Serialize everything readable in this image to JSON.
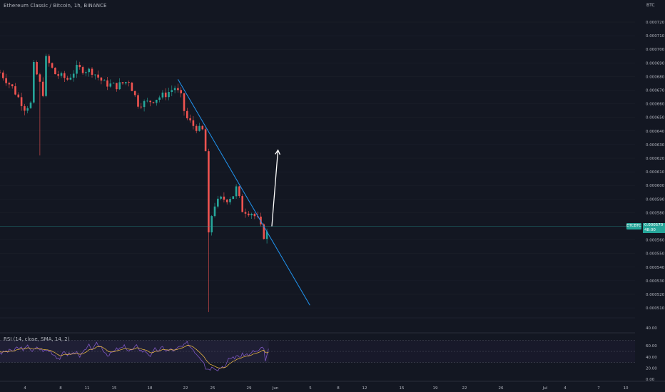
{
  "header": {
    "title": "Ethereum Classic / Bitcoin, 1h, BINANCE",
    "currency": "BTC"
  },
  "price_tag": {
    "symbol": "ETCBTC",
    "price": "0.000570",
    "countdown": "48:00"
  },
  "rsi_panel": {
    "title": "RSI (14, close, SMA, 14, 2)",
    "ticks": [
      "60.00",
      "40.00",
      "20.00",
      "0.00"
    ],
    "upper_band": 70,
    "lower_band": 30
  },
  "colors": {
    "background": "#131722",
    "up": "#26a69a",
    "down": "#ef5350",
    "trendline": "#2196f3",
    "arrow": "#ffffff",
    "rsi_line": "#7e57c2",
    "rsi_ma": "#f7c244"
  },
  "chart_data": {
    "type": "candlestick",
    "instrument": "ETCBTC",
    "timeframe": "1h",
    "exchange": "BINANCE",
    "x_ticks": [
      "4",
      "8",
      "11",
      "15",
      "18",
      "22",
      "25",
      "29",
      "Jun",
      "5",
      "8",
      "12",
      "15",
      "19",
      "22",
      "26",
      "Jul",
      "4",
      "7",
      "10"
    ],
    "y_ticks": [
      "0.000720",
      "0.000710",
      "0.000700",
      "0.000690",
      "0.000680",
      "0.000670",
      "0.000660",
      "0.000650",
      "0.000640",
      "0.000630",
      "0.000620",
      "0.000610",
      "0.000600",
      "0.000590",
      "0.000580",
      "0.000560",
      "0.000550",
      "0.000540",
      "0.000530",
      "0.000520",
      "0.000510"
    ],
    "extra_tick": "40.00",
    "ylim": [
      0.000505,
      0.000727
    ],
    "close_path": [
      {
        "d": 0,
        "p": 0.000683
      },
      {
        "d": 2,
        "p": 0.000672
      },
      {
        "d": 4,
        "p": 0.000657
      },
      {
        "d": 5,
        "p": 0.00066
      },
      {
        "d": 5.5,
        "p": 0.000688
      },
      {
        "d": 7,
        "p": 0.000668
      },
      {
        "d": 7.5,
        "p": 0.000693
      },
      {
        "d": 9,
        "p": 0.000682
      },
      {
        "d": 11,
        "p": 0.000678
      },
      {
        "d": 12.5,
        "p": 0.000686
      },
      {
        "d": 15,
        "p": 0.000684
      },
      {
        "d": 17,
        "p": 0.000675
      },
      {
        "d": 19,
        "p": 0.000673
      },
      {
        "d": 21,
        "p": 0.000677
      },
      {
        "d": 22.5,
        "p": 0.00066
      },
      {
        "d": 24,
        "p": 0.000661
      },
      {
        "d": 27,
        "p": 0.000667
      },
      {
        "d": 28.5,
        "p": 0.000672
      },
      {
        "d": 29.5,
        "p": 0.000665
      },
      {
        "d": 30,
        "p": 0.000655
      },
      {
        "d": 30.5,
        "p": 0.000649
      },
      {
        "d": 31.5,
        "p": 0.000644
      },
      {
        "d": 32.5,
        "p": 0.000641
      },
      {
        "d": 33.2,
        "p": 0.00064
      },
      {
        "d": 33.5,
        "p": 0.000625
      },
      {
        "d": 33.8,
        "p": 0.000555
      },
      {
        "d": 34.3,
        "p": 0.000575
      },
      {
        "d": 35,
        "p": 0.000586
      },
      {
        "d": 36,
        "p": 0.00059
      },
      {
        "d": 37,
        "p": 0.00059
      },
      {
        "d": 38,
        "p": 0.000593
      },
      {
        "d": 38.5,
        "p": 0.000598
      },
      {
        "d": 39.5,
        "p": 0.000582
      },
      {
        "d": 41,
        "p": 0.00058
      },
      {
        "d": 42,
        "p": 0.000575
      },
      {
        "d": 43,
        "p": 0.000563
      },
      {
        "d": 43.5,
        "p": 0.000565
      },
      {
        "d": 43.8,
        "p": 0.00057
      }
    ],
    "notable_wicks": [
      {
        "d": 6.3,
        "low": 0.000622
      },
      {
        "d": 34,
        "low": 0.000507
      }
    ],
    "last_price": 0.00057,
    "trendline": {
      "from": {
        "d": 29,
        "p": 0.000678
      },
      "to": {
        "d": 50.5,
        "p": 0.000512
      }
    },
    "projection_arrow": {
      "from": {
        "d": 44.3,
        "p": 0.00057
      },
      "to": {
        "d": 45.3,
        "p": 0.000626
      }
    }
  }
}
